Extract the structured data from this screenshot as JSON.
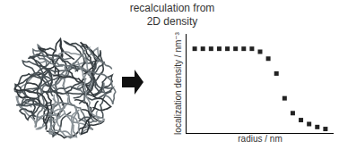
{
  "chart_data": {
    "type": "scatter",
    "annotations": [
      "recalculation from",
      "2D density"
    ],
    "x_label": "radius / nm",
    "y_label": "localization density / nm⁻³",
    "x": [
      1,
      2,
      3,
      4,
      5,
      6,
      7,
      8,
      9,
      10,
      11,
      12,
      13,
      14,
      15,
      16,
      17
    ],
    "values": [
      8.5,
      8.5,
      8.5,
      8.5,
      8.5,
      8.5,
      8.5,
      8.5,
      8.2,
      7.5,
      6.0,
      3.5,
      2.0,
      1.3,
      0.9,
      0.6,
      0.4
    ],
    "color": "#222222",
    "marker": "square",
    "xlim": [
      0,
      18
    ],
    "ylim": [
      0,
      10
    ],
    "tick_labels": false,
    "grid": false
  }
}
